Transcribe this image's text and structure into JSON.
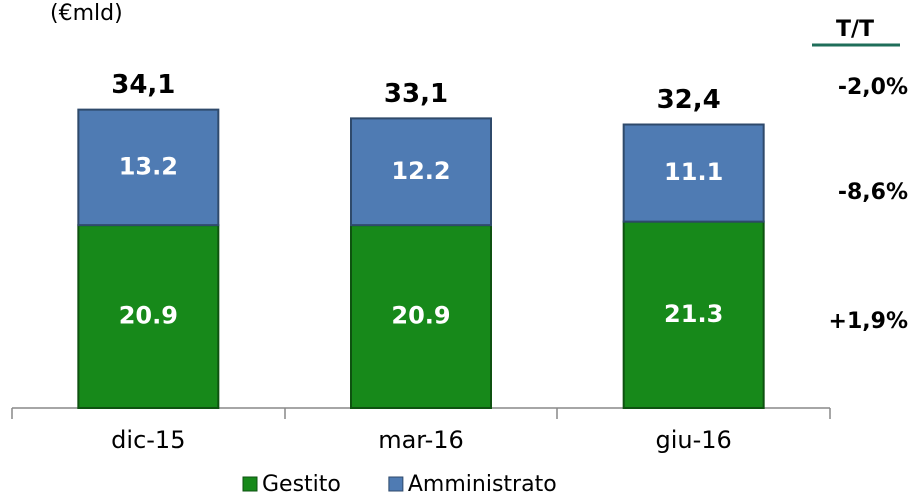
{
  "chart_data": {
    "type": "stacked_bar",
    "subtitle": "(€mld)",
    "categories": [
      "dic-15",
      "mar-16",
      "giu-16"
    ],
    "series": [
      {
        "name": "Gestito",
        "color": "#17891a",
        "values": [
          20.9,
          20.9,
          21.3
        ]
      },
      {
        "name": "Amministrato",
        "color": "#4f7bb3",
        "values": [
          13.2,
          12.2,
          11.1
        ]
      }
    ],
    "totals": {
      "values": [
        34.1,
        33.1,
        32.4
      ],
      "value_labels": [
        "34,1",
        "33,1",
        "32,4"
      ]
    },
    "change_column": {
      "title": "T/T",
      "labels": [
        "-2,0%",
        "-8,6%",
        "+1,9%"
      ]
    },
    "ylim": [
      0,
      40
    ],
    "legend": "bottom"
  }
}
